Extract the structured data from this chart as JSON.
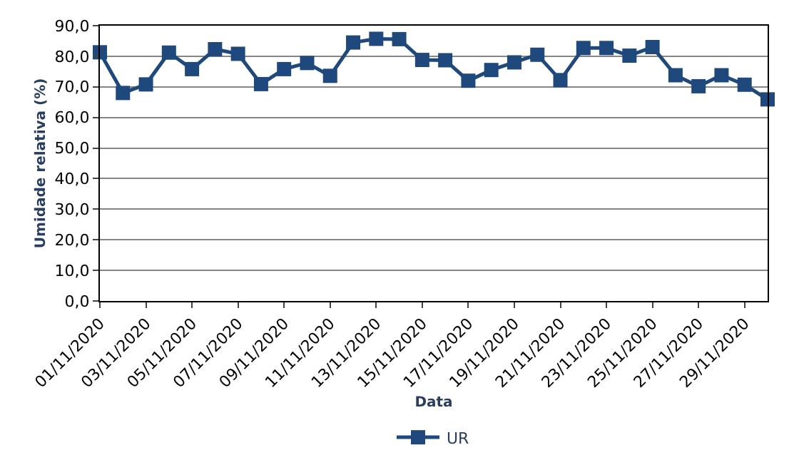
{
  "chart_data": {
    "type": "line",
    "categories": [
      "01/11/2020",
      null,
      "03/11/2020",
      null,
      "05/11/2020",
      null,
      "07/11/2020",
      null,
      "09/11/2020",
      null,
      "11/11/2020",
      null,
      "13/11/2020",
      null,
      "15/11/2020",
      null,
      "17/11/2020",
      null,
      "19/11/2020",
      null,
      "21/11/2020",
      null,
      "23/11/2020",
      null,
      "25/11/2020",
      null,
      "27/11/2020",
      null,
      "29/11/2020",
      null
    ],
    "series": [
      {
        "name": "UR",
        "color": "#1f497d",
        "values": [
          81.3,
          68.0,
          70.8,
          81.2,
          75.8,
          82.3,
          80.8,
          70.9,
          75.8,
          77.8,
          73.6,
          84.5,
          85.7,
          85.6,
          78.8,
          78.7,
          72.0,
          75.5,
          78.0,
          80.5,
          72.2,
          82.7,
          82.7,
          80.2,
          83.0,
          73.8,
          70.2,
          73.8,
          70.7,
          65.9
        ]
      }
    ],
    "xlabel": "Data",
    "ylabel": "Umidade relativa (%)",
    "ylim": [
      0,
      90
    ],
    "yticks": [
      {
        "value": 0,
        "label": "0,0"
      },
      {
        "value": 10,
        "label": "10,0"
      },
      {
        "value": 20,
        "label": "20,0"
      },
      {
        "value": 30,
        "label": "30,0"
      },
      {
        "value": 40,
        "label": "40,0"
      },
      {
        "value": 50,
        "label": "50,0"
      },
      {
        "value": 60,
        "label": "60,0"
      },
      {
        "value": 70,
        "label": "70,0"
      },
      {
        "value": 80,
        "label": "80,0"
      },
      {
        "value": 90,
        "label": "90,0"
      }
    ],
    "grid": "y",
    "legend": "bottom",
    "marker": "square",
    "line_style": "solid"
  }
}
